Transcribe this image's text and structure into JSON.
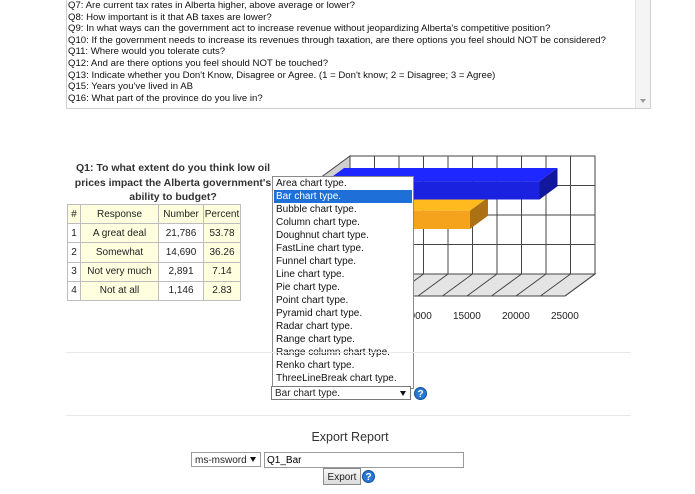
{
  "questions": [
    "Q7: Are current tax rates in Alberta higher, above average or lower?",
    "Q8: How important is it that AB taxes are lower?",
    "Q9: In what ways can the government act to increase revenue without jeopardizing Alberta's competitive position?",
    "Q10: If the government needs to increase its revenues through taxation, are there options you feel should NOT be considered?",
    "Q11: Where would you tolerate cuts?",
    "Q12: And are there options you feel should NOT be touched?",
    "Q13: Indicate whether you Don't Know, Disagree or Agree. (1 = Don't know; 2 = Disagree; 3 = Agree)",
    "Q15: Years you've lived in AB",
    "Q16: What part of the province do you live in?"
  ],
  "chart_title": "Q1: To what extent do you think low oil prices impact the Alberta government's ability to budget?",
  "table": {
    "headers": [
      "#",
      "Response",
      "Number",
      "Percent"
    ],
    "rows": [
      [
        "1",
        "A great deal",
        "21,786",
        "53.78"
      ],
      [
        "2",
        "Somewhat",
        "14,690",
        "36.26"
      ],
      [
        "3",
        "Not very much",
        "2,891",
        "7.14"
      ],
      [
        "4",
        "Not at all",
        "1,146",
        "2.83"
      ]
    ]
  },
  "chart_types": [
    "Area chart type.",
    "Bar chart type.",
    "Bubble chart type.",
    "Column chart type.",
    "Doughnut chart type.",
    "FastLine chart type.",
    "Funnel chart type.",
    "Line chart type.",
    "Pie chart type.",
    "Point chart type.",
    "Pyramid chart type.",
    "Radar chart type.",
    "Range chart type.",
    "Range column chart type.",
    "Renko chart type.",
    "ThreeLineBreak chart type."
  ],
  "selected_chart_type": "Bar chart type.",
  "help_icon_glyph": "?",
  "chart_data": {
    "type": "bar",
    "categories": [
      "A great deal",
      "Somewhat",
      "Not very much",
      "Not at all"
    ],
    "values": [
      21786,
      14690,
      2891,
      1146
    ],
    "colors": [
      "#1a22e0",
      "#f5a21c",
      "#c9d400",
      "#1f9a1f"
    ],
    "x_ticks": [
      "000",
      "10000",
      "15000",
      "20000",
      "25000"
    ],
    "xlim": [
      0,
      25000
    ],
    "grid": true
  },
  "export": {
    "title": "Export Report",
    "format": "ms-msword",
    "filename": "Q1_Bar",
    "button": "Export"
  }
}
